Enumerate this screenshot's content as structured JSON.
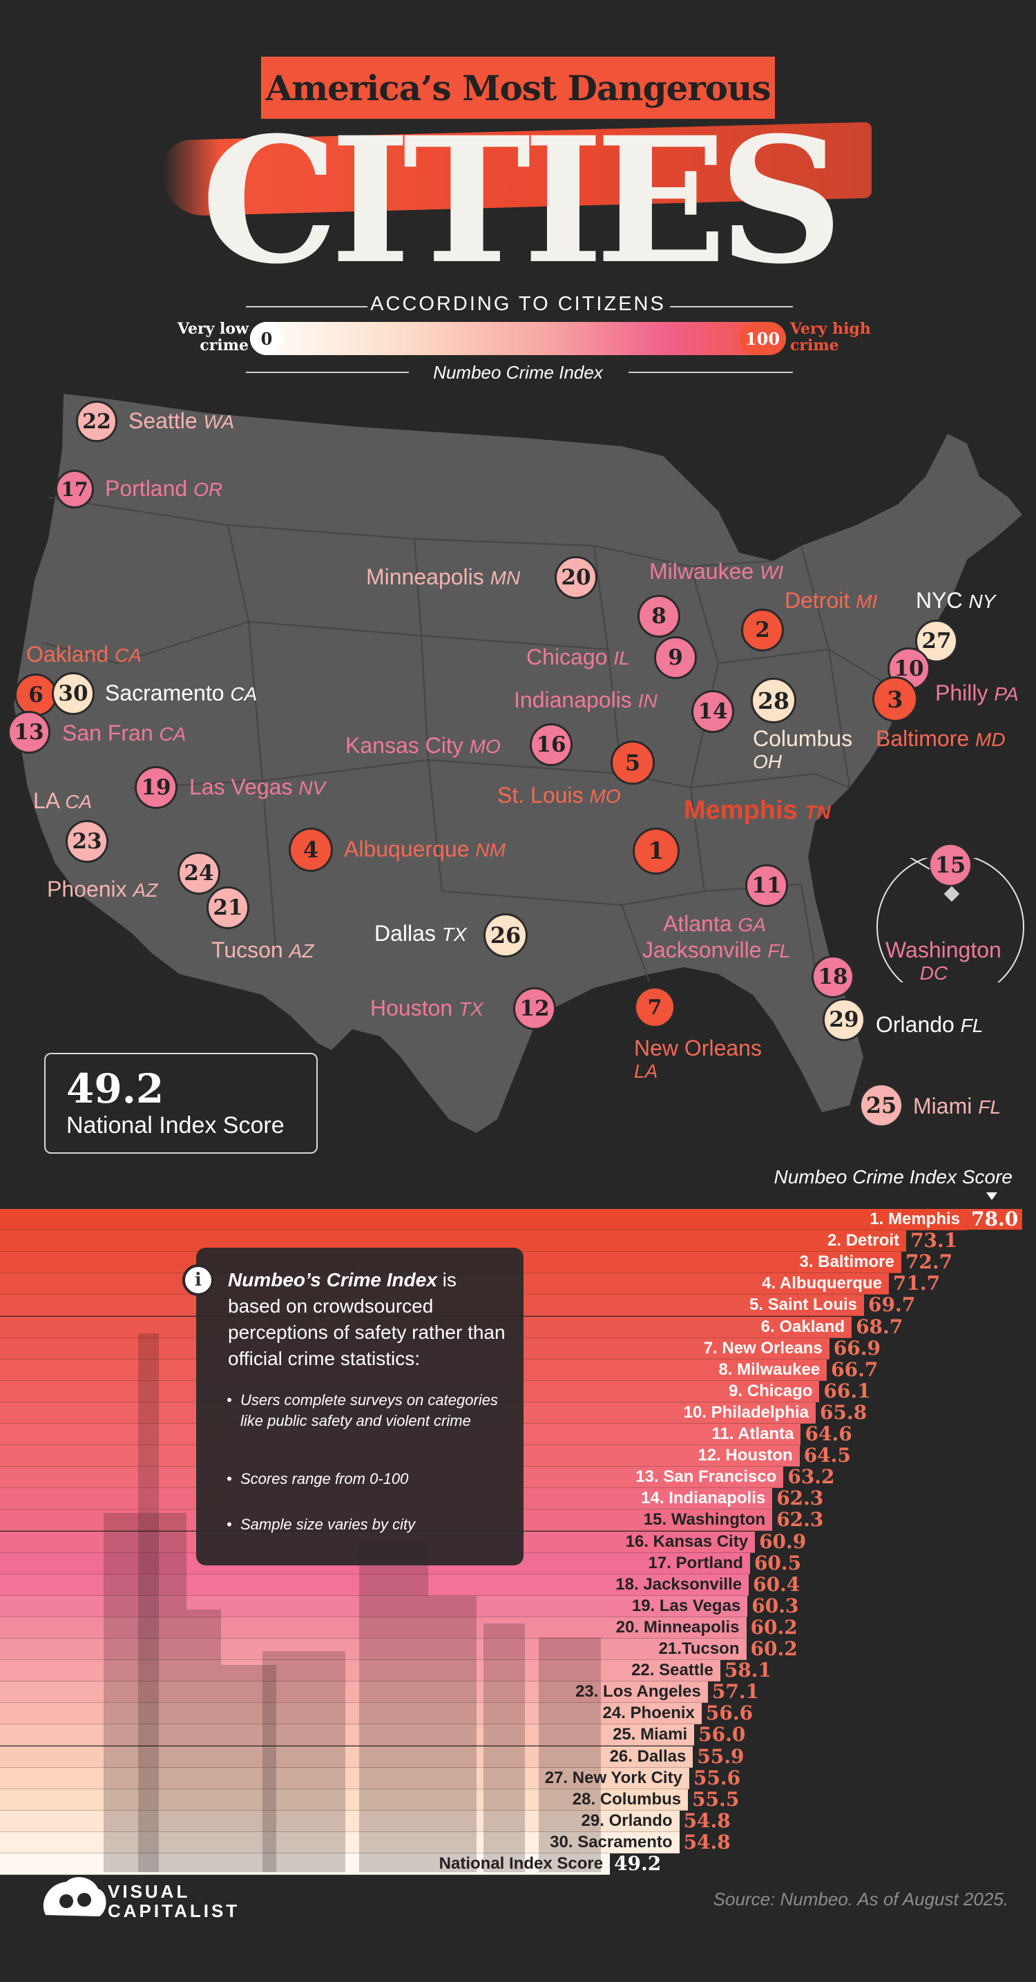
{
  "title": {
    "line1": "America’s Most Dangerous",
    "line2": "CITIES",
    "subtitle": "ACCORDING TO CITIZENS",
    "index_name": "Numbeo Crime Index"
  },
  "scale": {
    "low_value": "0",
    "high_value": "100",
    "low_label_1": "Very low",
    "low_label_2": "crime",
    "high_label_1": "Very high",
    "high_label_2": "crime"
  },
  "map_cities": [
    {
      "rank": "22",
      "name": "Seattle",
      "state": "WA"
    },
    {
      "rank": "17",
      "name": "Portland",
      "state": "OR"
    },
    {
      "rank": "6",
      "name": "Oakland",
      "state": "CA"
    },
    {
      "rank": "30",
      "name": "Sacramento",
      "state": "CA"
    },
    {
      "rank": "13",
      "name": "San Fran",
      "state": "CA"
    },
    {
      "rank": "19",
      "name": "Las Vegas",
      "state": "NV"
    },
    {
      "rank": "23",
      "name": "LA",
      "state": "CA"
    },
    {
      "rank": "24",
      "name": "Phoenix",
      "state": "AZ"
    },
    {
      "rank": "21",
      "name": "Tucson",
      "state": "AZ"
    },
    {
      "rank": "4",
      "name": "Albuquerque",
      "state": "NM"
    },
    {
      "rank": "20",
      "name": "Minneapolis",
      "state": "MN"
    },
    {
      "rank": "16",
      "name": "Kansas City",
      "state": "MO"
    },
    {
      "rank": "26",
      "name": "Dallas",
      "state": "TX"
    },
    {
      "rank": "12",
      "name": "Houston",
      "state": "TX"
    },
    {
      "rank": "8",
      "name": "Milwaukee",
      "state": "WI"
    },
    {
      "rank": "9",
      "name": "Chicago",
      "state": "IL"
    },
    {
      "rank": "14",
      "name": "Indianapolis",
      "state": "IN"
    },
    {
      "rank": "5",
      "name": "St. Louis",
      "state": "MO"
    },
    {
      "rank": "1",
      "name": "Memphis",
      "state": "TN"
    },
    {
      "rank": "7",
      "name": "New Orleans",
      "state": "LA"
    },
    {
      "rank": "11",
      "name": "Atlanta",
      "state": "GA"
    },
    {
      "rank": "18",
      "name": "Jacksonville",
      "state": "FL"
    },
    {
      "rank": "29",
      "name": "Orlando",
      "state": "FL"
    },
    {
      "rank": "25",
      "name": "Miami",
      "state": "FL"
    },
    {
      "rank": "2",
      "name": "Detroit",
      "state": "MI"
    },
    {
      "rank": "28",
      "name": "Columbus",
      "state": "OH"
    },
    {
      "rank": "27",
      "name": "NYC",
      "state": "NY"
    },
    {
      "rank": "10",
      "name": "Philly",
      "state": "PA"
    },
    {
      "rank": "3",
      "name": "Baltimore",
      "state": "MD"
    },
    {
      "rank": "15",
      "name": "Washington",
      "state": "DC"
    }
  ],
  "national": {
    "score": "49.2",
    "label": "National Index Score"
  },
  "chart_data": {
    "type": "bar",
    "ylabel": "Numbeo Crime Index Score",
    "ylim": [
      0,
      100
    ],
    "categories": [
      "1. Memphis",
      "2. Detroit",
      "3. Baltimore",
      "4. Albuquerque",
      "5. Saint Louis",
      "6. Oakland",
      "7. New Orleans",
      "8. Milwaukee",
      "9. Chicago",
      "10. Philadelphia",
      "11. Atlanta",
      "12. Houston",
      "13. San Francisco",
      "14. Indianapolis",
      "15. Washington",
      "16. Kansas City",
      "17. Portland",
      "18. Jacksonville",
      "19. Las Vegas",
      "20. Minneapolis",
      "21.Tucson",
      "22. Seattle",
      "23. Los Angeles",
      "24. Phoenix",
      "25. Miami",
      "26. Dallas",
      "27. New York City",
      "28. Columbus",
      "29. Orlando",
      "30. Sacramento",
      "National Index Score"
    ],
    "values": [
      78.0,
      73.1,
      72.7,
      71.7,
      69.7,
      68.7,
      66.9,
      66.7,
      66.1,
      65.8,
      64.6,
      64.5,
      63.2,
      62.3,
      62.3,
      60.9,
      60.5,
      60.4,
      60.3,
      60.2,
      60.2,
      58.1,
      57.1,
      56.6,
      56.0,
      55.9,
      55.6,
      55.5,
      54.8,
      54.8,
      49.2
    ],
    "value_labels": [
      "78.0",
      "73.1",
      "72.7",
      "71.7",
      "69.7",
      "68.7",
      "66.9",
      "66.7",
      "66.1",
      "65.8",
      "64.6",
      "64.5",
      "63.2",
      "62.3",
      "62.3",
      "60.9",
      "60.5",
      "60.4",
      "60.3",
      "60.2",
      "60.2",
      "58.1",
      "57.1",
      "56.6",
      "56.0",
      "55.9",
      "55.6",
      "55.5",
      "54.8",
      "54.8",
      "49.2"
    ]
  },
  "info_box": {
    "icon": "info-icon",
    "lead_bold": "Numbeo’s Crime Index",
    "lead_rest": " is based on crowdsourced perceptions of safety rather than official crime statistics:",
    "bullets": [
      "Users complete surveys on categories like public safety and violent crime",
      "Scores range from 0-100",
      "Sample size varies by city"
    ]
  },
  "footer": {
    "brand_line1": "VISUAL",
    "brand_line2": "CAPITALIST",
    "source": "Source: Numbeo. As of August 2025."
  },
  "colors": {
    "background": "#272727",
    "accent": "#f2543a",
    "pink": "#f06089",
    "light": "#fcd9c0"
  }
}
